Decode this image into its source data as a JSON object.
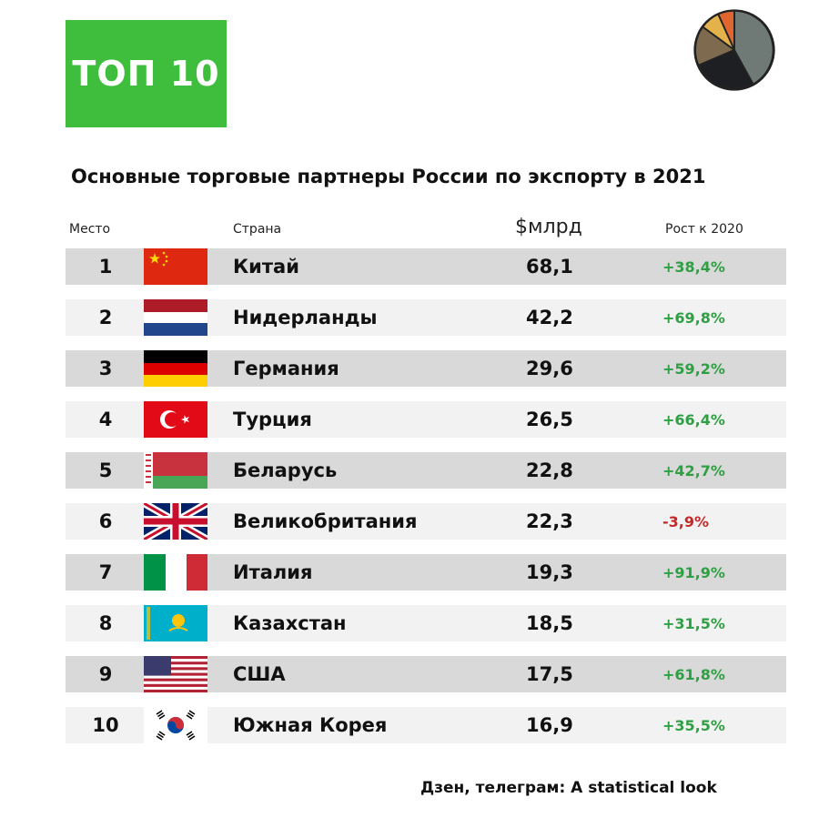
{
  "badge": "ТОП 10",
  "logo_icon": "pie-chart-logo",
  "colors": {
    "badge": "#3ebe3c",
    "shaded_row": "#d9d9d9",
    "plain_row": "#f2f2f2",
    "positive": "#2ea043",
    "negative": "#c62828"
  },
  "chart_data": {
    "type": "table",
    "title": "Основные торговые партнеры России по экспорту в 2021",
    "columns": [
      "Место",
      "Страна",
      "$млрд",
      "Рост к 2020"
    ],
    "rows": [
      {
        "place": "1",
        "country": "Китай",
        "value": "68,1",
        "growth": "+38,4%",
        "flag": "china-flag-icon"
      },
      {
        "place": "2",
        "country": "Нидерланды",
        "value": "42,2",
        "growth": "+69,8%",
        "flag": "netherlands-flag-icon"
      },
      {
        "place": "3",
        "country": "Германия",
        "value": "29,6",
        "growth": "+59,2%",
        "flag": "germany-flag-icon"
      },
      {
        "place": "4",
        "country": "Турция",
        "value": "26,5",
        "growth": "+66,4%",
        "flag": "turkey-flag-icon"
      },
      {
        "place": "5",
        "country": "Беларусь",
        "value": "22,8",
        "growth": "+42,7%",
        "flag": "belarus-flag-icon"
      },
      {
        "place": "6",
        "country": "Великобритания",
        "value": "22,3",
        "growth": "-3,9%",
        "flag": "uk-flag-icon"
      },
      {
        "place": "7",
        "country": "Италия",
        "value": "19,3",
        "growth": "+91,9%",
        "flag": "italy-flag-icon"
      },
      {
        "place": "8",
        "country": "Казахстан",
        "value": "18,5",
        "growth": "+31,5%",
        "flag": "kazakhstan-flag-icon"
      },
      {
        "place": "9",
        "country": "США",
        "value": "17,5",
        "growth": "+61,8%",
        "flag": "usa-flag-icon"
      },
      {
        "place": "10",
        "country": "Южная Корея",
        "value": "16,9",
        "growth": "+35,5%",
        "flag": "south-korea-flag-icon"
      }
    ]
  },
  "footer": "Дзен, телеграм: A statistical look"
}
